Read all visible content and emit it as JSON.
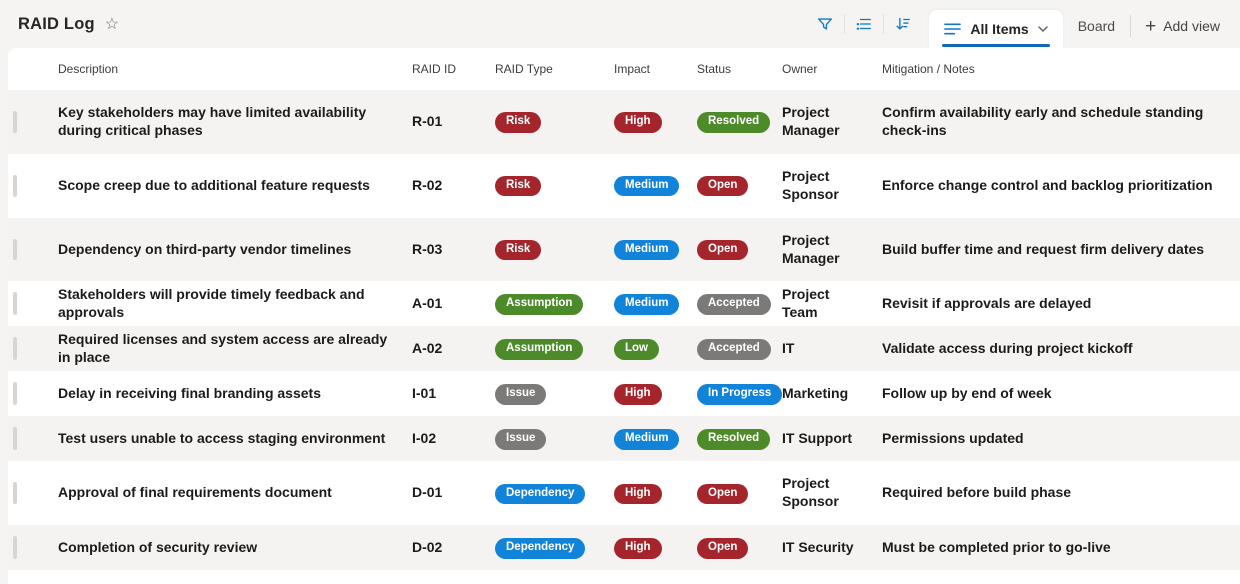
{
  "page": {
    "title": "RAID Log"
  },
  "toolbar": {
    "active_view": {
      "label": "All Items"
    },
    "other_view_label": "Board",
    "add_view_label": "Add view"
  },
  "palette": {
    "red": "#a4262c",
    "blue": "#1183d8",
    "green": "#4d8a2a",
    "gray": "#7b7a78",
    "accent_blue": "#1267b8",
    "icon_blue": "#0f78c8"
  },
  "table": {
    "columns": [
      "Description",
      "RAID ID",
      "RAID Type",
      "Impact",
      "Status",
      "Owner",
      "Mitigation / Notes"
    ],
    "rows": [
      {
        "description": "Key stakeholders may have limited availability during critical phases",
        "raid_id": "R-01",
        "raid_type": "Risk",
        "type_color": "red",
        "impact": "High",
        "impact_color": "red",
        "status": "Resolved",
        "status_color": "green",
        "owner": "Project Manager",
        "mitigation": "Confirm availability early and schedule standing check-ins"
      },
      {
        "description": "Scope creep due to additional feature requests",
        "raid_id": "R-02",
        "raid_type": "Risk",
        "type_color": "red",
        "impact": "Medium",
        "impact_color": "blue",
        "status": "Open",
        "status_color": "red",
        "owner": "Project Sponsor",
        "mitigation": "Enforce change control and backlog prioritization"
      },
      {
        "description": "Dependency on third-party vendor timelines",
        "raid_id": "R-03",
        "raid_type": "Risk",
        "type_color": "red",
        "impact": "Medium",
        "impact_color": "blue",
        "status": "Open",
        "status_color": "red",
        "owner": "Project Manager",
        "mitigation": "Build buffer time and request firm delivery dates"
      },
      {
        "description": "Stakeholders will provide timely feedback and approvals",
        "raid_id": "A-01",
        "raid_type": "Assumption",
        "type_color": "green",
        "impact": "Medium",
        "impact_color": "blue",
        "status": "Accepted",
        "status_color": "gray",
        "owner": "Project Team",
        "mitigation": "Revisit if approvals are delayed"
      },
      {
        "description": "Required licenses and system access are already in place",
        "raid_id": "A-02",
        "raid_type": "Assumption",
        "type_color": "green",
        "impact": "Low",
        "impact_color": "green",
        "status": "Accepted",
        "status_color": "gray",
        "owner": "IT",
        "mitigation": "Validate access during project kickoff"
      },
      {
        "description": "Delay in receiving final branding assets",
        "raid_id": "I-01",
        "raid_type": "Issue",
        "type_color": "gray",
        "impact": "High",
        "impact_color": "red",
        "status": "In Progress",
        "status_color": "blue",
        "owner": "Marketing",
        "mitigation": "Follow up by end of week"
      },
      {
        "description": "Test users unable to access staging environment",
        "raid_id": "I-02",
        "raid_type": "Issue",
        "type_color": "gray",
        "impact": "Medium",
        "impact_color": "blue",
        "status": "Resolved",
        "status_color": "green",
        "owner": "IT Support",
        "mitigation": "Permissions updated"
      },
      {
        "description": "Approval of final requirements document",
        "raid_id": "D-01",
        "raid_type": "Dependency",
        "type_color": "blue",
        "impact": "High",
        "impact_color": "red",
        "status": "Open",
        "status_color": "red",
        "owner": "Project Sponsor",
        "mitigation": "Required before build phase"
      },
      {
        "description": "Completion of security review",
        "raid_id": "D-02",
        "raid_type": "Dependency",
        "type_color": "blue",
        "impact": "High",
        "impact_color": "red",
        "status": "Open",
        "status_color": "red",
        "owner": "IT Security",
        "mitigation": "Must be completed prior to go-live"
      }
    ]
  }
}
